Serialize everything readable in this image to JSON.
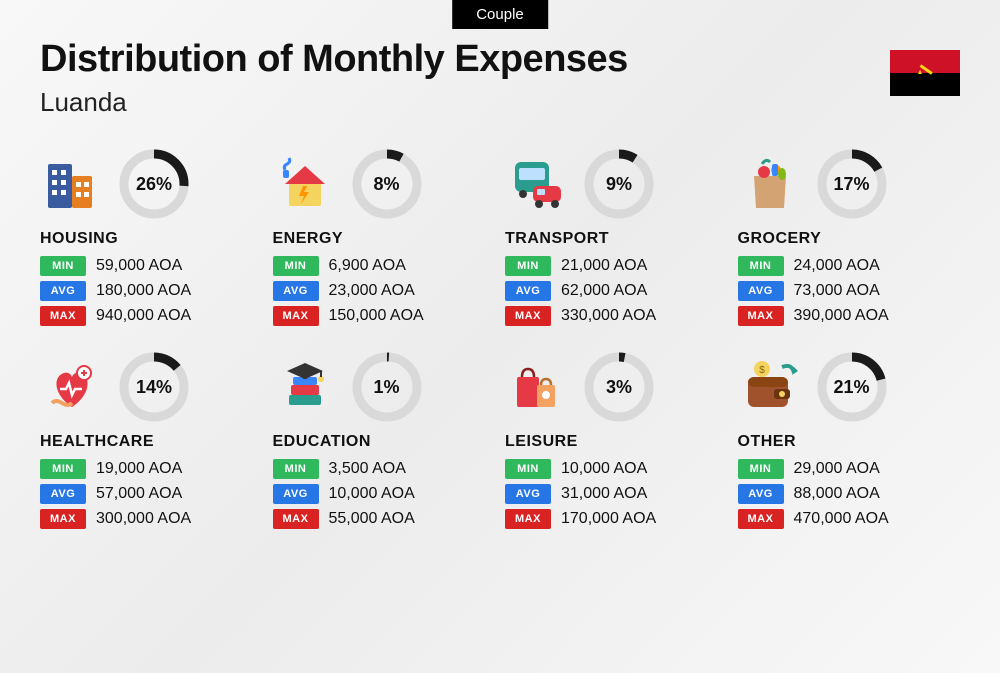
{
  "category_tag": "Couple",
  "title": "Distribution of Monthly Expenses",
  "subtitle": "Luanda",
  "flag": {
    "top_color": "#ce1126",
    "bottom_color": "#000000",
    "emblem_color": "#f9d616"
  },
  "donut": {
    "bg_color": "#d9d9d9",
    "fg_color": "#1a1a1a",
    "stroke_width": 9,
    "radius": 30
  },
  "badges": {
    "min": {
      "label": "MIN",
      "color": "#2fb85c"
    },
    "avg": {
      "label": "AVG",
      "color": "#2776e6"
    },
    "max": {
      "label": "MAX",
      "color": "#d92323"
    }
  },
  "currency": "AOA",
  "categories": [
    {
      "name": "HOUSING",
      "percent": 26,
      "percent_label": "26%",
      "min": "59,000 AOA",
      "avg": "180,000 AOA",
      "max": "940,000 AOA",
      "icon": "buildings"
    },
    {
      "name": "ENERGY",
      "percent": 8,
      "percent_label": "8%",
      "min": "6,900 AOA",
      "avg": "23,000 AOA",
      "max": "150,000 AOA",
      "icon": "house-energy"
    },
    {
      "name": "TRANSPORT",
      "percent": 9,
      "percent_label": "9%",
      "min": "21,000 AOA",
      "avg": "62,000 AOA",
      "max": "330,000 AOA",
      "icon": "bus-car"
    },
    {
      "name": "GROCERY",
      "percent": 17,
      "percent_label": "17%",
      "min": "24,000 AOA",
      "avg": "73,000 AOA",
      "max": "390,000 AOA",
      "icon": "grocery-bag"
    },
    {
      "name": "HEALTHCARE",
      "percent": 14,
      "percent_label": "14%",
      "min": "19,000 AOA",
      "avg": "57,000 AOA",
      "max": "300,000 AOA",
      "icon": "heart-care"
    },
    {
      "name": "EDUCATION",
      "percent": 1,
      "percent_label": "1%",
      "min": "3,500 AOA",
      "avg": "10,000 AOA",
      "max": "55,000 AOA",
      "icon": "grad-books"
    },
    {
      "name": "LEISURE",
      "percent": 3,
      "percent_label": "3%",
      "min": "10,000 AOA",
      "avg": "31,000 AOA",
      "max": "170,000 AOA",
      "icon": "shopping-bags"
    },
    {
      "name": "OTHER",
      "percent": 21,
      "percent_label": "21%",
      "min": "29,000 AOA",
      "avg": "88,000 AOA",
      "max": "470,000 AOA",
      "icon": "wallet"
    }
  ]
}
